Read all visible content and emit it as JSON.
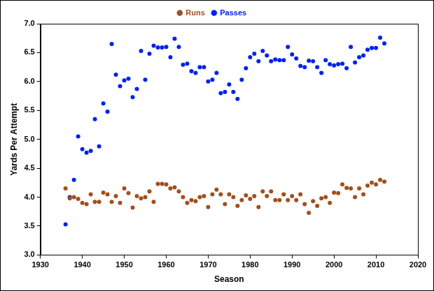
{
  "chart_data": {
    "type": "scatter",
    "x_label": "Season",
    "y_label": "Yards Per Attempt",
    "x": [
      1936,
      1937,
      1938,
      1939,
      1940,
      1941,
      1942,
      1943,
      1944,
      1945,
      1946,
      1947,
      1948,
      1949,
      1950,
      1951,
      1952,
      1953,
      1954,
      1955,
      1956,
      1957,
      1958,
      1959,
      1960,
      1961,
      1962,
      1963,
      1964,
      1965,
      1966,
      1967,
      1968,
      1969,
      1970,
      1971,
      1972,
      1973,
      1974,
      1975,
      1976,
      1977,
      1978,
      1979,
      1980,
      1981,
      1982,
      1983,
      1984,
      1985,
      1986,
      1987,
      1988,
      1989,
      1990,
      1991,
      1992,
      1993,
      1994,
      1995,
      1996,
      1997,
      1998,
      1999,
      2000,
      2001,
      2002,
      2003,
      2004,
      2005,
      2006,
      2007,
      2008,
      2009,
      2010,
      2011,
      2012
    ],
    "series": [
      {
        "name": "Runs",
        "color": "#a0501e",
        "marker": "circle",
        "values": [
          4.15,
          3.98,
          4.0,
          3.97,
          3.9,
          3.88,
          4.05,
          3.92,
          3.92,
          4.08,
          4.05,
          3.92,
          4.02,
          3.9,
          4.15,
          4.07,
          3.82,
          4.02,
          3.98,
          4.0,
          4.1,
          3.92,
          4.23,
          4.23,
          4.22,
          4.15,
          4.17,
          4.1,
          4.0,
          3.9,
          3.95,
          3.93,
          4.0,
          4.02,
          3.83,
          4.05,
          4.13,
          4.05,
          3.88,
          4.05,
          4.0,
          3.85,
          3.95,
          4.03,
          3.97,
          4.02,
          3.83,
          4.1,
          4.02,
          4.1,
          3.95,
          3.95,
          4.05,
          3.95,
          4.02,
          3.95,
          4.05,
          3.88,
          3.73,
          3.93,
          3.85,
          3.98,
          4.0,
          3.9,
          4.08,
          4.07,
          4.22,
          4.16,
          4.15,
          4.0,
          4.15,
          4.05,
          4.2,
          4.25,
          4.22,
          4.3,
          4.27
        ]
      },
      {
        "name": "Passes",
        "color": "#0022ee",
        "marker": "circle",
        "values": [
          3.53,
          4.0,
          4.3,
          5.05,
          4.83,
          4.77,
          4.8,
          5.35,
          4.88,
          5.62,
          5.48,
          6.65,
          6.12,
          5.92,
          6.02,
          6.05,
          5.73,
          5.87,
          6.53,
          6.03,
          6.48,
          6.62,
          6.59,
          6.59,
          6.6,
          6.42,
          6.74,
          6.6,
          6.29,
          6.31,
          6.18,
          6.15,
          6.25,
          6.25,
          6.0,
          6.03,
          6.15,
          5.8,
          5.82,
          5.95,
          5.82,
          5.7,
          6.03,
          6.23,
          6.42,
          6.48,
          6.35,
          6.53,
          6.45,
          6.35,
          6.38,
          6.37,
          6.37,
          6.6,
          6.47,
          6.4,
          6.27,
          6.25,
          6.36,
          6.35,
          6.25,
          6.15,
          6.37,
          6.3,
          6.28,
          6.3,
          6.31,
          6.23,
          6.6,
          6.33,
          6.42,
          6.45,
          6.55,
          6.58,
          6.58,
          6.76,
          6.66
        ]
      }
    ],
    "xlim": [
      1930,
      2020
    ],
    "xticks": [
      1930,
      1940,
      1950,
      1960,
      1970,
      1980,
      1990,
      2000,
      2010,
      2020
    ],
    "ylim": [
      3,
      7
    ],
    "yticks": [
      {
        "value": 3,
        "label": "3.0"
      },
      {
        "value": 3.5,
        "label": "3.5"
      },
      {
        "value": 4,
        "label": "4.0"
      },
      {
        "value": 4.5,
        "label": "4.5"
      },
      {
        "value": 5,
        "label": "5.0"
      },
      {
        "value": 5.5,
        "label": "5.5"
      },
      {
        "value": 6,
        "label": "6.0"
      },
      {
        "value": 6.5,
        "label": "6.5"
      },
      {
        "value": 7,
        "label": "7.0"
      }
    ],
    "grid": false,
    "legend": "top"
  }
}
